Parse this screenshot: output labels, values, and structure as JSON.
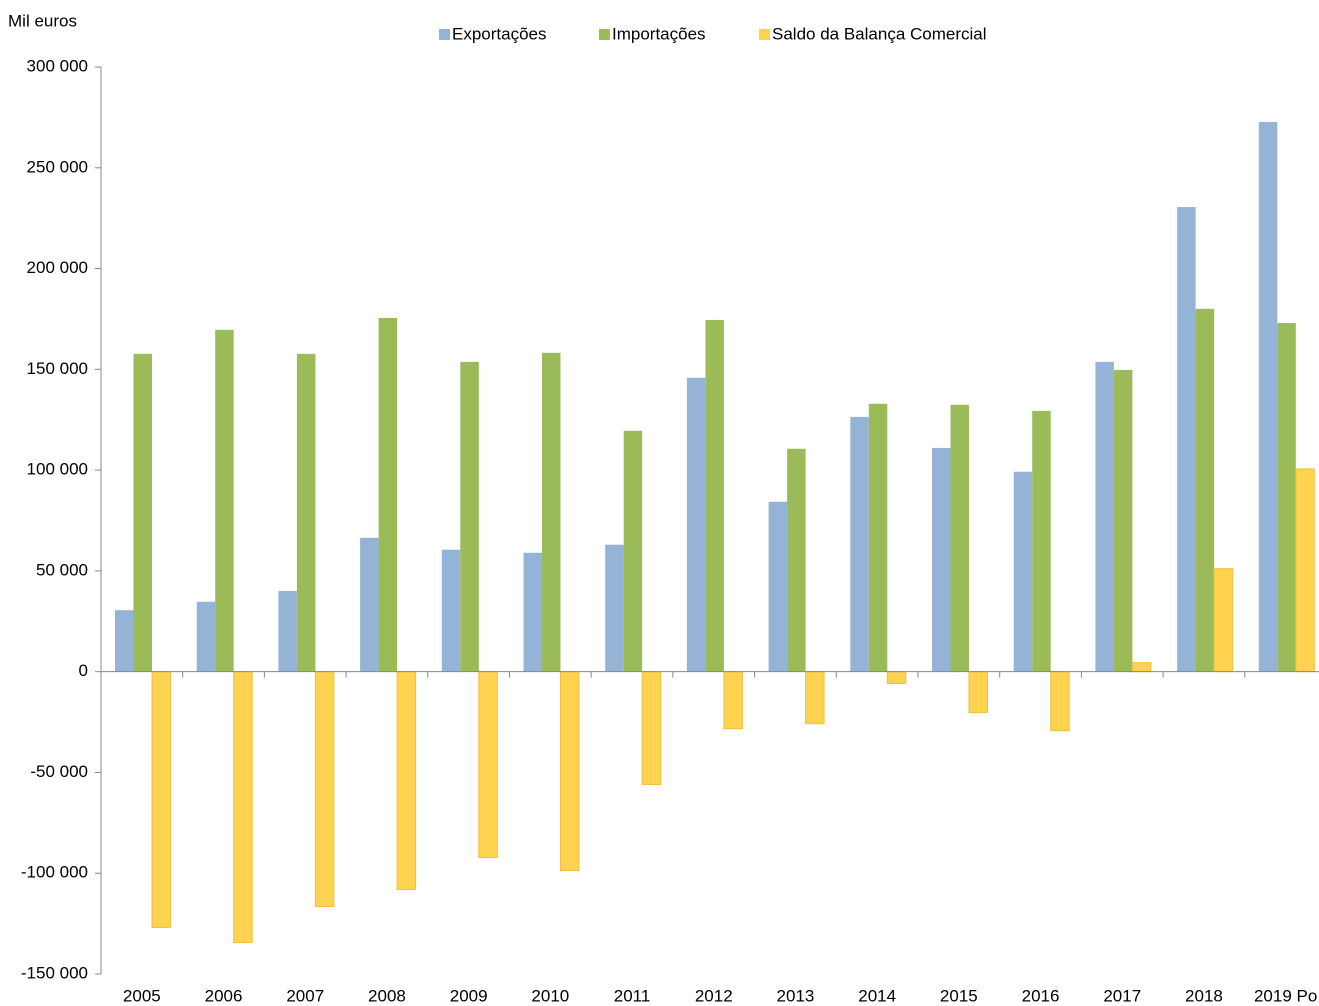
{
  "chart_data": {
    "type": "bar",
    "y_label": "Mil euros",
    "categories": [
      "2005",
      "2006",
      "2007",
      "2008",
      "2009",
      "2010",
      "2011",
      "2012",
      "2013",
      "2014",
      "2015",
      "2016",
      "2017",
      "2018",
      "2019 Po"
    ],
    "series": [
      {
        "name": "Exportações",
        "color": "#95b3d7",
        "values": [
          30500,
          34700,
          40000,
          66400,
          60500,
          59000,
          63000,
          145800,
          84300,
          126400,
          111000,
          99200,
          153700,
          230500,
          272700
        ]
      },
      {
        "name": "Importações",
        "color": "#9bbb59",
        "values": [
          157700,
          169600,
          157700,
          175500,
          153700,
          158200,
          119500,
          174500,
          110600,
          132900,
          132400,
          129400,
          149700,
          180000,
          173000
        ]
      },
      {
        "name": "Saldo da Balança Comercial",
        "color": "#ffd24f",
        "values": [
          -126900,
          -134400,
          -116500,
          -108100,
          -92200,
          -98700,
          -56000,
          -28300,
          -25800,
          -5900,
          -20300,
          -29300,
          4500,
          51100,
          100600
        ]
      }
    ],
    "ylim": [
      -150000,
      300000
    ],
    "yticks": [
      {
        "value": -150000,
        "label": "-150 000"
      },
      {
        "value": -100000,
        "label": "-100 000"
      },
      {
        "value": -50000,
        "label": "-50 000"
      },
      0,
      {
        "value": 50000,
        "label": "50 000"
      },
      {
        "value": 100000,
        "label": "100 000"
      },
      {
        "value": 150000,
        "label": "150 000"
      },
      {
        "value": 200000,
        "label": "200 000"
      },
      {
        "value": 250000,
        "label": "250 000"
      },
      {
        "value": 300000,
        "label": "300 000"
      }
    ],
    "grid": false
  }
}
